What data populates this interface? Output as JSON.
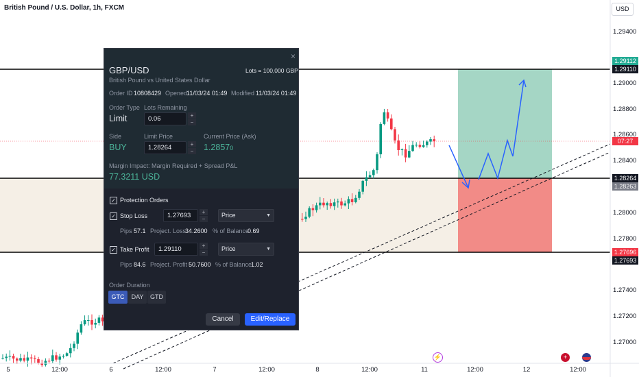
{
  "chart": {
    "symbol_title": "British Pound / U.S. Dollar, 1h, FXCM",
    "currency": "USD",
    "price_axis": [
      "1.29400",
      "1.29000",
      "1.28800",
      "1.28600",
      "1.28400",
      "1.28000",
      "1.27800",
      "1.27400",
      "1.27200",
      "1.27000"
    ],
    "time_axis": [
      "5",
      "12:00",
      "6",
      "12:00",
      "7",
      "12:00",
      "8",
      "12:00",
      "11",
      "12:00",
      "12",
      "12:00"
    ],
    "price_tags": [
      {
        "label": "1.29112",
        "color": "#22ab94"
      },
      {
        "label": "1.29110",
        "color": "#131722"
      },
      {
        "label": "07:27",
        "color": "#f23645"
      },
      {
        "label": "1.28264",
        "color": "#131722"
      },
      {
        "label": "1.28263",
        "color": "#787b86"
      },
      {
        "label": "1.27696",
        "color": "#f23645"
      },
      {
        "label": "1.27693",
        "color": "#131722"
      }
    ],
    "colors": {
      "up": "#089981",
      "down": "#f23645",
      "profit_zone": "#a5d6c5",
      "loss_zone": "#f28b87",
      "arrow": "#2962ff"
    }
  },
  "dialog": {
    "symbol": "GBP/USD",
    "lots_info": "Lots = 100,000 GBP",
    "description": "British Pound vs United States Dollar",
    "order_id_label": "Order ID",
    "order_id": "10808429",
    "opened_label": "Opened",
    "opened": "11/03/24 01:49",
    "modified_label": "Modified",
    "modified": "11/03/24 01:49",
    "order_type_label": "Order Type",
    "order_type": "Limit",
    "lots_remaining_label": "Lots Remaining",
    "lots_remaining": "0.06",
    "side_label": "Side",
    "side": "BUY",
    "limit_price_label": "Limit Price",
    "limit_price": "1.28264",
    "current_price_label": "Current Price (Ask)",
    "current_price_main": "1.2857",
    "current_price_pip": "0",
    "margin_label": "Margin Impact: Margin Required + Spread P&L",
    "margin_value": "77.3211 USD",
    "protection_label": "Protection Orders",
    "stop_loss": {
      "label": "Stop Loss",
      "value": "1.27693",
      "type": "Price",
      "pips_label": "Pips",
      "pips": "57.1",
      "project_label": "Project. Loss",
      "project": "34.2600",
      "balance_label": "% of Balance",
      "balance": "0.69"
    },
    "take_profit": {
      "label": "Take Profit",
      "value": "1.29110",
      "type": "Price",
      "pips_label": "Pips",
      "pips": "84.6",
      "project_label": "Project. Profit",
      "project": "50.7600",
      "balance_label": "% of Balance",
      "balance": "1.02"
    },
    "duration_label": "Order Duration",
    "durations": [
      "GTC",
      "DAY",
      "GTD"
    ],
    "cancel_label": "Cancel",
    "submit_label": "Edit/Replace"
  }
}
